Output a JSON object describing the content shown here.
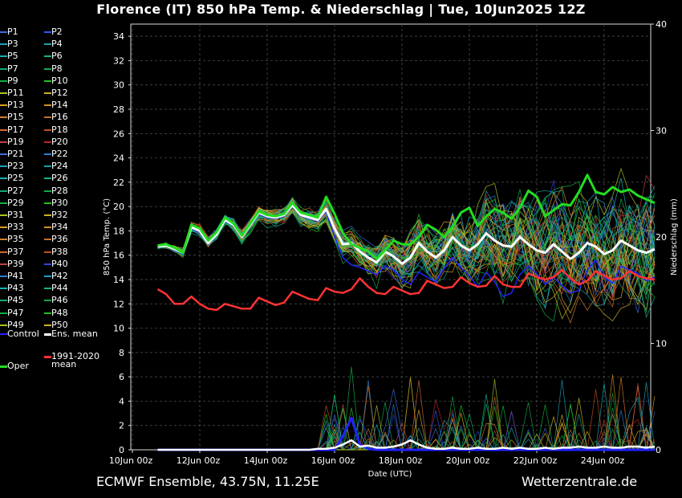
{
  "title": "Florence  (IT)  850 hPa Temp. & Niederschlag | Tue, 10Jun2025 12Z",
  "footer": {
    "left": "ECMWF Ensemble, 43.75N, 11.25E",
    "right": "Wetterzentrale.de"
  },
  "colors": {
    "oper": "#22dd22",
    "ens_mean": "#ffffff",
    "clim_mean": "#ff3333",
    "control": "#2222ff",
    "grid": "#555555"
  },
  "legend": {
    "members": [
      "P1",
      "P2",
      "P3",
      "P4",
      "P5",
      "P6",
      "P7",
      "P8",
      "P9",
      "P10",
      "P11",
      "P12",
      "P13",
      "P14",
      "P15",
      "P16",
      "P17",
      "P18",
      "P19",
      "P20",
      "P21",
      "P22",
      "P23",
      "P24",
      "P25",
      "P26",
      "P27",
      "P28",
      "P29",
      "P30",
      "P31",
      "P32",
      "P33",
      "P34",
      "P35",
      "P36",
      "P37",
      "P38",
      "P39",
      "P40",
      "P41",
      "P42",
      "P43",
      "P44",
      "P45",
      "P46",
      "P47",
      "P48",
      "P49",
      "P50"
    ],
    "member_colors": [
      "#3a6bd8",
      "#3355ee",
      "#1fa0c0",
      "#1ea0b0",
      "#16b0b0",
      "#14b090",
      "#12a870",
      "#10a850",
      "#12b040",
      "#20c020",
      "#b0c020",
      "#d0b020",
      "#d8a020",
      "#d09020",
      "#d08030",
      "#c87028",
      "#d06838",
      "#c05020",
      "#c04040",
      "#b82828",
      "#3a6bd8",
      "#2a80d0",
      "#1fa0c0",
      "#1ea0b0",
      "#16b0b0",
      "#14b090",
      "#12a870",
      "#10a850",
      "#12b040",
      "#20c020",
      "#b0c020",
      "#d0b020",
      "#d8a020",
      "#d09020",
      "#d08030",
      "#c87028",
      "#d06838",
      "#c05020",
      "#c04040",
      "#3344dd",
      "#2a80d0",
      "#1fa0c0",
      "#16b0b0",
      "#14b090",
      "#12a870",
      "#10a850",
      "#12b040",
      "#20c020",
      "#b0c020",
      "#d0b020"
    ],
    "control": "Control",
    "ens_mean": "Ens. mean",
    "clim_line1": "1991-2020",
    "clim_line2": "mean",
    "oper": "Oper"
  },
  "chart_data": {
    "type": "line",
    "xlabel": "Date (UTC)",
    "ylabel_left": "850 hPa Temp. (°C)",
    "ylabel_right": "Niederschlag (mm)",
    "ylim_left": [
      0,
      35
    ],
    "ylim_right": [
      0,
      40
    ],
    "xlim_hours": [
      0,
      372
    ],
    "grid": true,
    "x_tick_labels": [
      "10Jun 00z",
      "12Jun 00z",
      "14Jun 00z",
      "16Jun 00z",
      "18Jun 00z",
      "20Jun 00z",
      "22Jun 00z",
      "24Jun 00z"
    ],
    "y_tick_labels_left": [
      "0",
      "2",
      "4",
      "6",
      "8",
      "10",
      "12",
      "14",
      "16",
      "18",
      "20",
      "22",
      "24",
      "26",
      "28",
      "30",
      "32",
      "34"
    ],
    "y_tick_labels_right": [
      "0",
      "10",
      "20",
      "30",
      "40"
    ],
    "series": [
      {
        "name": "Oper",
        "color": "#22dd22",
        "step_hours": 6,
        "start_hour": 18,
        "values": [
          16.8,
          16.9,
          16.6,
          16.2,
          18.5,
          18.2,
          17.2,
          17.9,
          19.1,
          18.6,
          17.6,
          18.6,
          19.6,
          19.3,
          19.2,
          19.4,
          20.3,
          19.5,
          19.3,
          19.1,
          20.8,
          19.4,
          17.8,
          16.9,
          16.6,
          16.3,
          15.7,
          16.4,
          17.2,
          16.9,
          16.9,
          17.5,
          18.5,
          18.1,
          17.5,
          18.3,
          19.5,
          19.9,
          18.4,
          19.2,
          19.8,
          19.5,
          19.0,
          19.9,
          21.3,
          20.8,
          19.2,
          19.7,
          20.2,
          20.1,
          21.2,
          22.6,
          21.2,
          21.0,
          21.6,
          21.2,
          21.4,
          20.9,
          20.6,
          20.3
        ]
      },
      {
        "name": "Ens. mean",
        "color": "#ffffff",
        "step_hours": 6,
        "start_hour": 18,
        "values": [
          16.7,
          16.8,
          16.5,
          16.2,
          18.3,
          18.0,
          17.0,
          17.7,
          18.9,
          18.5,
          17.5,
          18.5,
          19.5,
          19.2,
          19.1,
          19.3,
          20.1,
          19.3,
          19.1,
          18.9,
          19.8,
          18.2,
          16.9,
          17.0,
          16.3,
          15.8,
          15.4,
          16.3,
          15.9,
          15.3,
          15.8,
          17.0,
          16.3,
          15.8,
          16.4,
          17.5,
          16.8,
          16.4,
          16.9,
          17.8,
          17.2,
          16.8,
          16.7,
          17.5,
          16.9,
          16.4,
          16.2,
          16.9,
          16.3,
          15.7,
          16.2,
          17.0,
          16.7,
          16.1,
          16.4,
          17.2,
          16.8,
          16.4,
          16.2,
          16.5
        ]
      },
      {
        "name": "1991-2020 mean",
        "color": "#ff3333",
        "step_hours": 6,
        "start_hour": 18,
        "values": [
          13.2,
          12.8,
          12.0,
          12.0,
          12.6,
          12.0,
          11.6,
          11.5,
          12.0,
          11.8,
          11.6,
          11.6,
          12.5,
          12.2,
          11.9,
          12.1,
          13.0,
          12.7,
          12.4,
          12.3,
          13.3,
          13.0,
          12.9,
          13.2,
          14.1,
          13.4,
          12.9,
          12.8,
          13.4,
          13.1,
          12.8,
          12.9,
          13.9,
          13.6,
          13.3,
          13.4,
          14.2,
          13.7,
          13.4,
          13.5,
          14.3,
          13.6,
          13.4,
          13.4,
          14.5,
          14.2,
          14.0,
          14.2,
          14.8,
          14.1,
          13.6,
          13.9,
          14.7,
          14.3,
          14.0,
          14.1,
          14.7,
          14.3,
          14.1,
          14.0
        ]
      },
      {
        "name": "Control",
        "color": "#2222ff",
        "step_hours": 6,
        "start_hour": 18,
        "values": [
          16.6,
          16.8,
          16.4,
          16.1,
          18.2,
          17.9,
          16.9,
          17.6,
          18.8,
          18.4,
          17.4,
          18.4,
          19.4,
          19.1,
          19.0,
          19.2,
          20.0,
          19.2,
          19.0,
          18.8,
          19.6,
          17.5,
          15.8,
          15.2,
          15.0,
          14.7,
          14.4,
          15.1,
          14.8,
          14.0,
          13.6,
          14.6,
          14.2,
          13.8,
          14.9,
          15.8,
          15.0,
          14.3,
          13.4,
          14.6,
          13.8,
          12.6,
          12.9,
          14.4,
          15.1,
          14.5,
          13.6,
          14.2,
          13.5,
          12.9,
          13.1,
          14.8,
          15.6,
          14.2,
          13.7,
          15.1,
          14.8,
          14.5,
          13.9,
          14.2
        ]
      },
      {
        "name": "Control precipitation",
        "axis": "right",
        "color": "#2222ff",
        "step_hours": 6,
        "start_hour": 18,
        "values": [
          0,
          0,
          0,
          0,
          0,
          0,
          0,
          0,
          0,
          0,
          0,
          0,
          0,
          0,
          0,
          0,
          0,
          0,
          0,
          0,
          0,
          0,
          1.3,
          3.0,
          0.5,
          0.1,
          0,
          0,
          0,
          0,
          0,
          0,
          0,
          0,
          0,
          0,
          0,
          0,
          0,
          0,
          0,
          0,
          0,
          0,
          0,
          0,
          0,
          0,
          0,
          0,
          0,
          0,
          0,
          0,
          0,
          0,
          0,
          0,
          0,
          0
        ]
      },
      {
        "name": "Ens. mean precipitation",
        "axis": "right",
        "color": "#ffffff",
        "step_hours": 6,
        "start_hour": 18,
        "values": [
          0,
          0,
          0,
          0,
          0,
          0,
          0,
          0,
          0,
          0,
          0,
          0,
          0,
          0,
          0,
          0,
          0,
          0,
          0,
          0.1,
          0.1,
          0.2,
          0.5,
          0.9,
          0.3,
          0.4,
          0.2,
          0.2,
          0.3,
          0.5,
          0.9,
          0.5,
          0.2,
          0.1,
          0.1,
          0.2,
          0.1,
          0.1,
          0.2,
          0.1,
          0.1,
          0.2,
          0.1,
          0.2,
          0.1,
          0.1,
          0.2,
          0.1,
          0.2,
          0.2,
          0.3,
          0.2,
          0.2,
          0.3,
          0.2,
          0.2,
          0.3,
          0.3,
          0.2,
          0.3
        ]
      }
    ]
  }
}
